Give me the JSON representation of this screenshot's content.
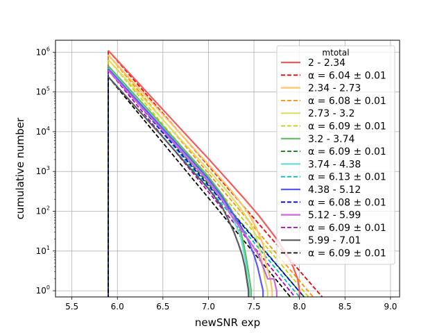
{
  "chart_data": {
    "type": "line",
    "title": "",
    "xlabel": "newSNR exp",
    "ylabel": "cumulative number",
    "xlim": [
      5.32,
      9.1
    ],
    "ylim": [
      0.7,
      2000000
    ],
    "yscale": "log",
    "grid": true,
    "xticks": [
      5.5,
      6.0,
      6.5,
      7.0,
      7.5,
      8.0,
      8.5,
      9.0
    ],
    "xtick_labels": [
      "5.5",
      "6.0",
      "6.5",
      "7.0",
      "7.5",
      "8.0",
      "8.5",
      "9.0"
    ],
    "yticks": [
      1,
      10,
      100,
      1000,
      10000,
      100000,
      1000000
    ],
    "ytick_mantissa": "10",
    "ytick_exponents": [
      "0",
      "1",
      "2",
      "3",
      "4",
      "5",
      "6"
    ],
    "legend": {
      "title": "mtotal",
      "placement": "upper-right"
    },
    "x_start": 5.9,
    "series": [
      {
        "name": "2 - 2.34",
        "color": "#f25a5a",
        "fit_label": "α = 6.04 ± 0.01",
        "fit_color": "#ee0000",
        "fit_alpha": 6.04,
        "fit_end_x": 8.25,
        "points": [
          [
            5.9,
            1100000
          ],
          [
            6.2,
            200000
          ],
          [
            6.5,
            36000
          ],
          [
            6.8,
            6500
          ],
          [
            7.0,
            2100
          ],
          [
            7.2,
            650
          ],
          [
            7.4,
            200
          ],
          [
            7.55,
            80
          ],
          [
            7.65,
            40
          ],
          [
            7.75,
            20
          ],
          [
            7.85,
            9
          ],
          [
            7.93,
            4
          ],
          [
            7.98,
            2
          ],
          [
            8.0,
            1
          ]
        ]
      },
      {
        "name": "2.34 - 2.73",
        "color": "#ffc266",
        "fit_label": "α = 6.08 ± 0.01",
        "fit_color": "#ff8c00",
        "fit_alpha": 6.08,
        "fit_end_x": 8.15,
        "points": [
          [
            5.9,
            850000
          ],
          [
            6.2,
            150000
          ],
          [
            6.5,
            27000
          ],
          [
            6.8,
            4800
          ],
          [
            7.0,
            1500
          ],
          [
            7.2,
            450
          ],
          [
            7.35,
            170
          ],
          [
            7.45,
            80
          ],
          [
            7.52,
            40
          ],
          [
            7.6,
            15
          ],
          [
            7.63,
            5
          ],
          [
            7.68,
            2
          ],
          [
            7.7,
            1
          ]
        ]
      },
      {
        "name": "2.73 - 3.2",
        "color": "#dede66",
        "fit_label": "α = 6.09 ± 0.01",
        "fit_color": "#cccc00",
        "fit_alpha": 6.09,
        "fit_end_x": 8.1,
        "points": [
          [
            5.9,
            650000
          ],
          [
            6.2,
            115000
          ],
          [
            6.5,
            20000
          ],
          [
            6.8,
            3500
          ],
          [
            7.0,
            1100
          ],
          [
            7.2,
            330
          ],
          [
            7.35,
            120
          ],
          [
            7.45,
            55
          ],
          [
            7.52,
            25
          ],
          [
            7.57,
            10
          ],
          [
            7.6,
            4
          ],
          [
            7.62,
            2
          ],
          [
            7.65,
            1
          ]
        ]
      },
      {
        "name": "3.2 - 3.74",
        "color": "#5fbf5f",
        "fit_label": "α = 6.09 ± 0.01",
        "fit_color": "#008000",
        "fit_alpha": 6.09,
        "fit_end_x": 8.05,
        "points": [
          [
            5.9,
            450000
          ],
          [
            6.2,
            80000
          ],
          [
            6.5,
            14000
          ],
          [
            6.8,
            2400
          ],
          [
            7.0,
            750
          ],
          [
            7.15,
            260
          ],
          [
            7.25,
            110
          ],
          [
            7.3,
            65
          ],
          [
            7.35,
            35
          ],
          [
            7.38,
            18
          ],
          [
            7.41,
            8
          ],
          [
            7.44,
            3
          ],
          [
            7.47,
            1
          ]
        ]
      },
      {
        "name": "3.74 - 4.38",
        "color": "#66dddd",
        "fit_label": "α = 6.13 ± 0.01",
        "fit_color": "#00bbbb",
        "fit_alpha": 6.13,
        "fit_end_x": 8.0,
        "points": [
          [
            5.9,
            400000
          ],
          [
            6.2,
            70000
          ],
          [
            6.5,
            12000
          ],
          [
            6.8,
            2100
          ],
          [
            7.0,
            600
          ],
          [
            7.15,
            200
          ],
          [
            7.25,
            80
          ],
          [
            7.3,
            45
          ],
          [
            7.35,
            25
          ],
          [
            7.38,
            12
          ],
          [
            7.41,
            5
          ],
          [
            7.43,
            2
          ],
          [
            7.45,
            1
          ]
        ]
      },
      {
        "name": "4.38 - 5.12",
        "color": "#5a5aee",
        "fit_label": "α = 6.08 ± 0.01",
        "fit_color": "#0000cc",
        "fit_alpha": 6.08,
        "fit_end_x": 8.05,
        "points": [
          [
            5.9,
            380000
          ],
          [
            6.2,
            67000
          ],
          [
            6.5,
            12000
          ],
          [
            6.8,
            2100
          ],
          [
            7.0,
            650
          ],
          [
            7.15,
            230
          ],
          [
            7.25,
            100
          ],
          [
            7.35,
            45
          ],
          [
            7.43,
            20
          ],
          [
            7.5,
            8
          ],
          [
            7.54,
            4
          ],
          [
            7.57,
            2
          ],
          [
            7.6,
            1
          ]
        ]
      },
      {
        "name": "5.12 - 5.99",
        "color": "#cc66dd",
        "fit_label": "α = 6.09 ± 0.01",
        "fit_color": "#aa00bb",
        "fit_alpha": 6.09,
        "fit_end_x": 7.95,
        "points": [
          [
            5.9,
            350000
          ],
          [
            6.2,
            60000
          ],
          [
            6.5,
            10500
          ],
          [
            6.8,
            1800
          ],
          [
            7.0,
            550
          ],
          [
            7.15,
            190
          ],
          [
            7.25,
            80
          ],
          [
            7.35,
            38
          ],
          [
            7.45,
            18
          ],
          [
            7.55,
            8
          ],
          [
            7.6,
            4
          ],
          [
            7.65,
            2
          ],
          [
            7.72,
            2
          ],
          [
            7.75,
            1
          ]
        ]
      },
      {
        "name": "5.99 - 7.01",
        "color": "#5a5a5a",
        "fit_label": "α = 6.09 ± 0.01",
        "fit_color": "#000000",
        "fit_alpha": 6.09,
        "fit_end_x": 7.9,
        "points": [
          [
            5.9,
            240000
          ],
          [
            6.2,
            42000
          ],
          [
            6.5,
            7300
          ],
          [
            6.8,
            1200
          ],
          [
            7.0,
            370
          ],
          [
            7.15,
            130
          ],
          [
            7.22,
            60
          ],
          [
            7.28,
            30
          ],
          [
            7.33,
            15
          ],
          [
            7.37,
            8
          ],
          [
            7.4,
            4
          ],
          [
            7.42,
            2
          ],
          [
            7.44,
            1
          ]
        ]
      }
    ]
  }
}
